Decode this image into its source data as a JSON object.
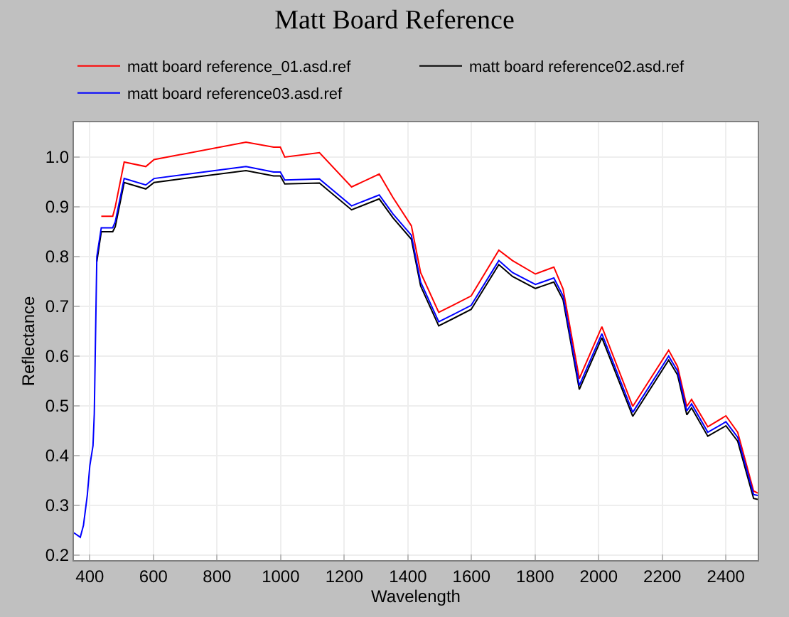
{
  "chart_data": {
    "type": "line",
    "title": "Matt Board Reference",
    "xlabel": "Wavelength",
    "ylabel": "Reflectance",
    "x": [
      350,
      370,
      380,
      392,
      400,
      410,
      414,
      422,
      436,
      472,
      480,
      508,
      576,
      602,
      891,
      978,
      999,
      1013,
      1122,
      1223,
      1310,
      1353,
      1411,
      1440,
      1497,
      1541,
      1599,
      1686,
      1729,
      1801,
      1859,
      1888,
      1939,
      2010,
      2107,
      2220,
      2248,
      2277,
      2292,
      2343,
      2400,
      2437,
      2487,
      2500
    ],
    "series": [
      {
        "name": "matt board reference_01.asd.ref",
        "color": "#ff0000",
        "values": [
          null,
          null,
          null,
          null,
          null,
          null,
          null,
          null,
          0.881,
          0.881,
          0.9,
          0.99,
          0.981,
          0.995,
          1.03,
          1.02,
          1.02,
          1.0,
          1.009,
          0.94,
          0.966,
          0.919,
          0.862,
          0.768,
          0.688,
          0.702,
          0.721,
          0.813,
          0.792,
          0.765,
          0.779,
          0.735,
          0.555,
          0.659,
          0.499,
          0.612,
          0.579,
          0.499,
          0.513,
          0.458,
          0.48,
          0.447,
          0.329,
          0.325
        ]
      },
      {
        "name": "matt board reference02.asd.ref",
        "color": "#000000",
        "values": [
          null,
          null,
          null,
          null,
          null,
          null,
          null,
          0.79,
          0.85,
          0.85,
          0.86,
          0.949,
          0.936,
          0.949,
          0.973,
          0.962,
          0.962,
          0.946,
          0.948,
          0.894,
          0.916,
          0.878,
          0.835,
          0.741,
          0.661,
          0.675,
          0.694,
          0.784,
          0.76,
          0.736,
          0.749,
          0.713,
          0.533,
          0.637,
          0.479,
          0.592,
          0.562,
          0.482,
          0.496,
          0.439,
          0.46,
          0.429,
          0.314,
          0.312
        ]
      },
      {
        "name": "matt board reference03.asd.ref",
        "color": "#0000ff",
        "values": [
          0.245,
          0.236,
          0.26,
          0.32,
          0.38,
          0.42,
          0.484,
          0.8,
          0.858,
          0.858,
          0.87,
          0.957,
          0.944,
          0.957,
          0.981,
          0.97,
          0.97,
          0.954,
          0.956,
          0.902,
          0.924,
          0.886,
          0.843,
          0.749,
          0.669,
          0.683,
          0.702,
          0.792,
          0.768,
          0.744,
          0.757,
          0.721,
          0.541,
          0.645,
          0.487,
          0.6,
          0.57,
          0.49,
          0.504,
          0.447,
          0.468,
          0.437,
          0.322,
          0.32
        ]
      }
    ],
    "xlim": [
      350,
      2500
    ],
    "xticks": [
      400,
      600,
      800,
      1000,
      1200,
      1400,
      1600,
      1800,
      2000,
      2200,
      2400
    ],
    "ylim": [
      0.19,
      1.07
    ],
    "yticks": [
      0.2,
      0.3,
      0.4,
      0.5,
      0.6,
      0.7,
      0.8,
      0.9,
      {
        "value": 1.0,
        "label": "1.0"
      }
    ],
    "grid": true,
    "legend": "top",
    "marker": "none",
    "line_style": "solid"
  }
}
